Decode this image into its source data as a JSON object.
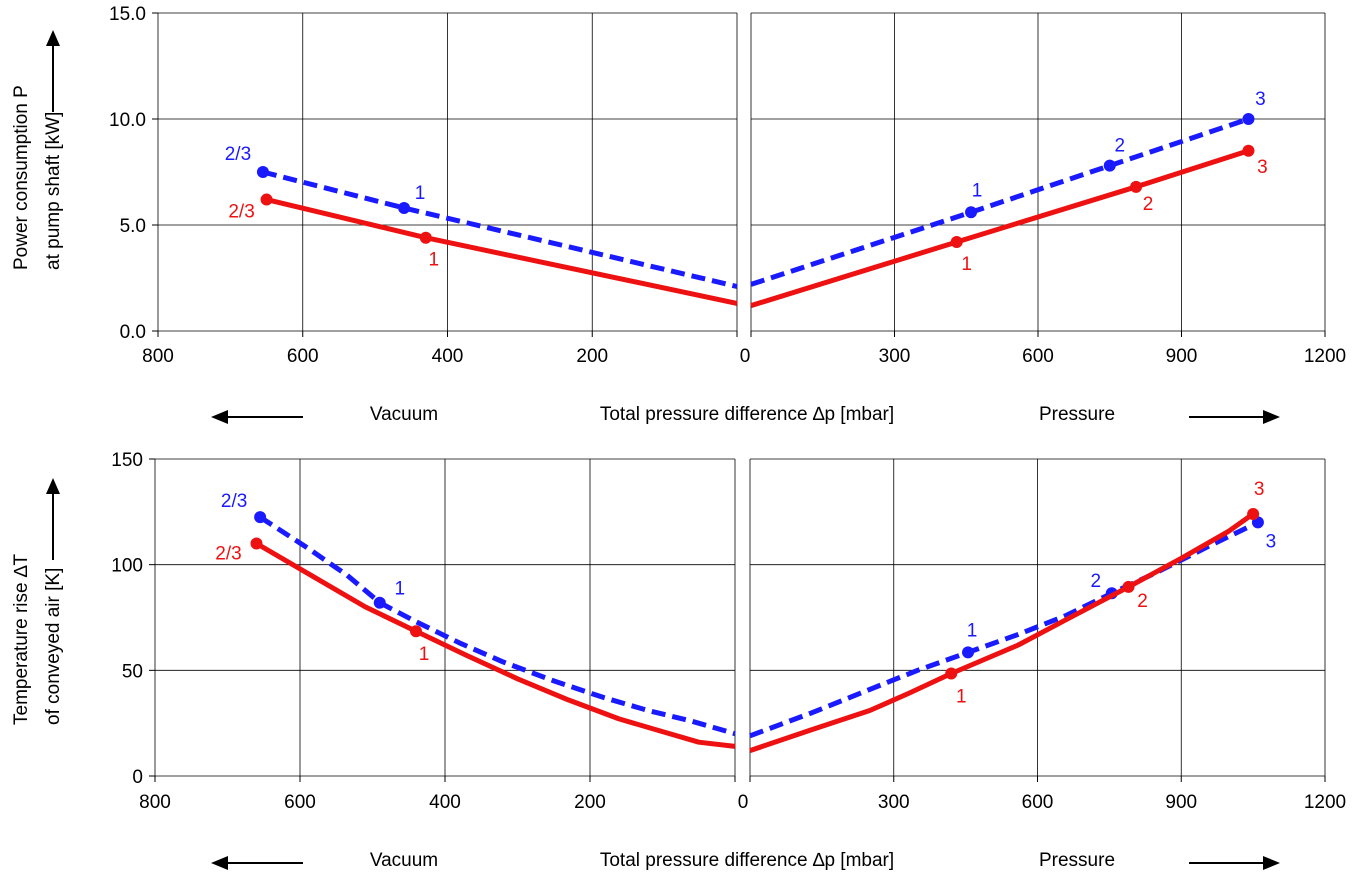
{
  "chart_data": [
    {
      "type": "line",
      "ylabel_lines": [
        "Power consumption P",
        "at pump shaft [kW]"
      ],
      "ylim": [
        0,
        15
      ],
      "y_ticks": [
        "0.0",
        "5.0",
        "10.0",
        "15.0"
      ],
      "xlabel": "Total pressure difference ∆p [mbar]",
      "region_labels": {
        "left": "Vacuum",
        "right": "Pressure"
      },
      "vacuum_axis": {
        "xlim": [
          800,
          0
        ],
        "ticks": [
          "800",
          "600",
          "400",
          "200",
          "0"
        ]
      },
      "pressure_axis": {
        "xlim": [
          0,
          1200
        ],
        "ticks": [
          "300",
          "600",
          "900",
          "1200"
        ]
      },
      "grid": true,
      "colors": {
        "blue": "#1a1aff",
        "red": "#ee1111"
      },
      "series": [
        {
          "color": "blue",
          "style": "dashed",
          "vacuum": {
            "x": [
              655,
              460,
              0
            ],
            "y": [
              7.5,
              5.8,
              2.1
            ]
          },
          "pressure": {
            "x": [
              0,
              460,
              750,
              1040
            ],
            "y": [
              2.2,
              5.6,
              7.8,
              10.0
            ]
          },
          "points": [
            {
              "side": "vacuum",
              "x": 655,
              "y": 7.5,
              "label": "2/3"
            },
            {
              "side": "vacuum",
              "x": 460,
              "y": 5.8,
              "label": "1"
            },
            {
              "side": "pressure",
              "x": 460,
              "y": 5.6,
              "label": "1"
            },
            {
              "side": "pressure",
              "x": 750,
              "y": 7.8,
              "label": "2"
            },
            {
              "side": "pressure",
              "x": 1040,
              "y": 10.0,
              "label": "3"
            }
          ]
        },
        {
          "color": "red",
          "style": "solid",
          "vacuum": {
            "x": [
              650,
              430,
              0
            ],
            "y": [
              6.2,
              4.4,
              1.3
            ]
          },
          "pressure": {
            "x": [
              0,
              430,
              805,
              1040
            ],
            "y": [
              1.2,
              4.2,
              6.8,
              8.5
            ]
          },
          "points": [
            {
              "side": "vacuum",
              "x": 650,
              "y": 6.2,
              "label": "2/3"
            },
            {
              "side": "vacuum",
              "x": 430,
              "y": 4.4,
              "label": "1"
            },
            {
              "side": "pressure",
              "x": 430,
              "y": 4.2,
              "label": "1"
            },
            {
              "side": "pressure",
              "x": 805,
              "y": 6.8,
              "label": "2"
            },
            {
              "side": "pressure",
              "x": 1040,
              "y": 8.5,
              "label": "3"
            }
          ]
        }
      ]
    },
    {
      "type": "line",
      "ylabel_lines": [
        "Temperature rise ∆T",
        "of conveyed air [K]"
      ],
      "ylim": [
        0,
        150
      ],
      "y_ticks": [
        "0",
        "50",
        "100",
        "150"
      ],
      "xlabel": "Total pressure difference ∆p [mbar]",
      "region_labels": {
        "left": "Vacuum",
        "right": "Pressure"
      },
      "vacuum_axis": {
        "xlim": [
          800,
          0
        ],
        "ticks": [
          "800",
          "600",
          "400",
          "200",
          "0"
        ]
      },
      "pressure_axis": {
        "xlim": [
          0,
          1200
        ],
        "ticks": [
          "300",
          "600",
          "900",
          "1200"
        ]
      },
      "grid": true,
      "colors": {
        "blue": "#1a1aff",
        "red": "#ee1111"
      },
      "series": [
        {
          "color": "blue",
          "style": "dashed",
          "vacuum": {
            "x": [
              655,
              590,
              535,
              490,
              440,
              380,
              320,
              250,
              180,
              120,
              60,
              0
            ],
            "y": [
              122.5,
              108,
              95,
              82,
              73,
              63,
              54,
              45,
              37,
              31,
              26,
              20
            ]
          },
          "pressure": {
            "x": [
              0,
              130,
              250,
              350,
              455,
              560,
              660,
              755,
              850,
              960,
              1060
            ],
            "y": [
              19,
              30,
              41,
              50,
              58.5,
              67,
              76,
              86.5,
              96.5,
              109,
              120
            ]
          },
          "points": [
            {
              "side": "vacuum",
              "x": 655,
              "y": 122.5,
              "label": "2/3"
            },
            {
              "side": "vacuum",
              "x": 490,
              "y": 82,
              "label": "1"
            },
            {
              "side": "pressure",
              "x": 455,
              "y": 58.5,
              "label": "1"
            },
            {
              "side": "pressure",
              "x": 755,
              "y": 86.5,
              "label": "2"
            },
            {
              "side": "pressure",
              "x": 1060,
              "y": 120,
              "label": "3"
            }
          ]
        },
        {
          "color": "red",
          "style": "solid",
          "vacuum": {
            "x": [
              660,
              580,
              510,
              440,
              370,
              300,
              230,
              160,
              100,
              50,
              0
            ],
            "y": [
              110,
              94,
              80,
              68.5,
              57,
              46,
              36,
              27,
              21,
              16,
              14
            ]
          },
          "pressure": {
            "x": [
              0,
              130,
              250,
              330,
              420,
              560,
              660,
              790,
              900,
              1000,
              1050
            ],
            "y": [
              12,
              22,
              31,
              39,
              48.5,
              62,
              74,
              89.5,
              103,
              116,
              124
            ]
          },
          "points": [
            {
              "side": "vacuum",
              "x": 660,
              "y": 110,
              "label": "2/3"
            },
            {
              "side": "vacuum",
              "x": 440,
              "y": 68.5,
              "label": "1"
            },
            {
              "side": "pressure",
              "x": 420,
              "y": 48.5,
              "label": "1"
            },
            {
              "side": "pressure",
              "x": 790,
              "y": 89.5,
              "label": "2"
            },
            {
              "side": "pressure",
              "x": 1050,
              "y": 124,
              "label": "3"
            }
          ]
        }
      ]
    }
  ]
}
